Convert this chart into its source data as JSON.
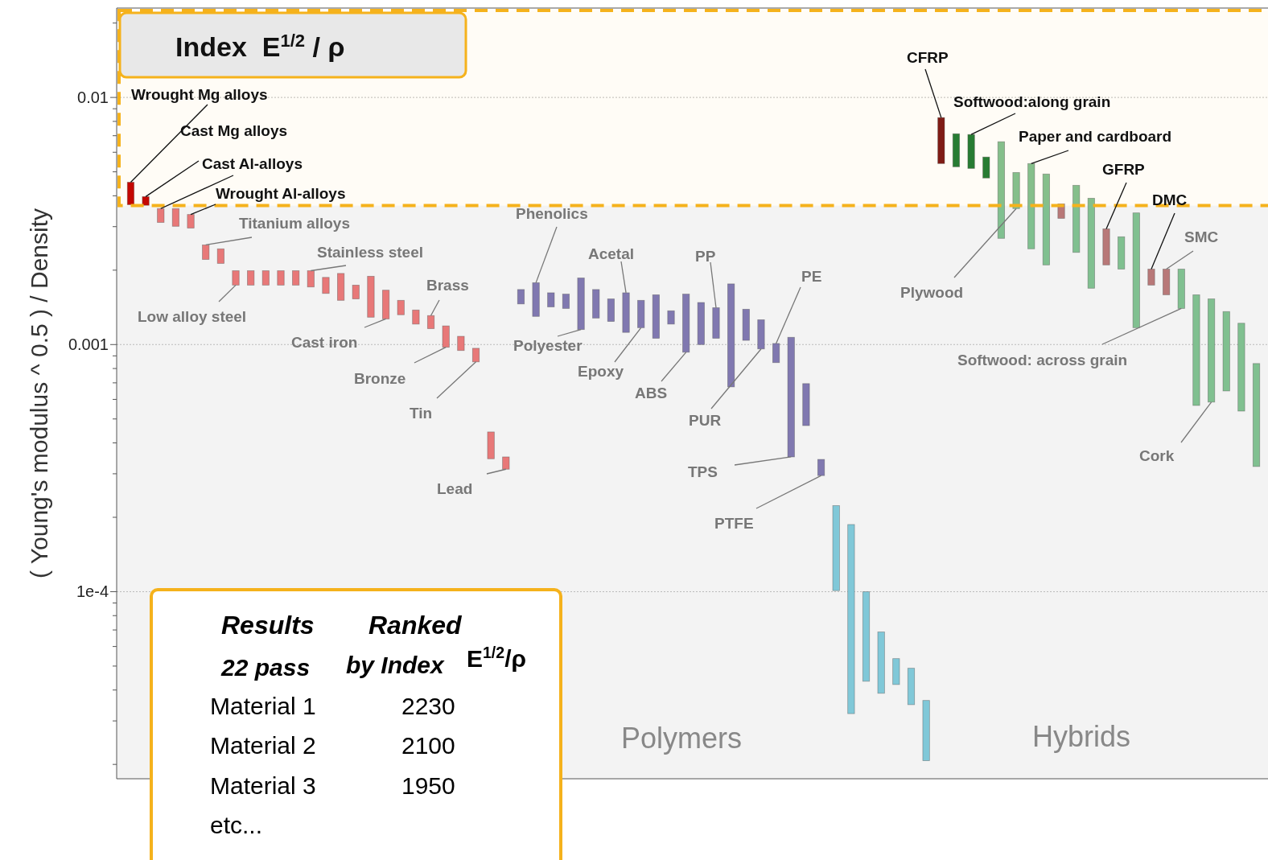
{
  "chart_data": {
    "type": "bar",
    "ylabel": "( Young's modulus ^ 0.5 ) / Density",
    "log": true,
    "grid": "y",
    "ylim": [
      1.75e-05,
      0.023
    ],
    "yticks": [
      {
        "value": 0.02,
        "label": null
      },
      0.01,
      {
        "value": 0.009,
        "label": null
      },
      {
        "value": 0.008,
        "label": null
      },
      {
        "value": 0.007,
        "label": null
      },
      {
        "value": 0.006,
        "label": null
      },
      {
        "value": 0.005,
        "label": null
      },
      {
        "value": 0.004,
        "label": null
      },
      {
        "value": 0.003,
        "label": null
      },
      {
        "value": 0.002,
        "label": null
      },
      0.001,
      {
        "value": 0.0009,
        "label": null
      },
      {
        "value": 0.0008,
        "label": null
      },
      {
        "value": 0.0007,
        "label": null
      },
      {
        "value": 0.0006,
        "label": null
      },
      {
        "value": 0.0005,
        "label": null
      },
      {
        "value": 0.0004,
        "label": null
      },
      {
        "value": 0.0003,
        "label": null
      },
      {
        "value": 0.0002,
        "label": null
      },
      {
        "value": 0.0001,
        "label": "1e-4"
      },
      {
        "value": 9e-05,
        "label": null
      },
      {
        "value": 8e-05,
        "label": null
      },
      {
        "value": 7e-05,
        "label": null
      },
      {
        "value": 6e-05,
        "label": null
      },
      {
        "value": 5e-05,
        "label": null
      },
      {
        "value": 4e-05,
        "label": null
      },
      {
        "value": 3e-05,
        "label": null
      },
      {
        "value": 2e-05,
        "label": null
      }
    ],
    "categories": [
      null,
      null,
      null,
      null,
      null,
      null,
      null,
      null,
      null,
      null,
      null,
      null,
      null,
      null,
      null,
      null,
      null,
      null,
      null,
      null,
      null,
      null,
      null,
      null,
      null,
      null,
      null,
      null,
      null,
      null,
      null,
      null,
      null,
      null,
      null,
      null,
      null,
      null,
      null,
      null,
      null,
      null,
      null,
      null,
      null,
      null,
      null,
      null,
      null,
      null,
      null,
      null,
      null,
      null,
      null,
      null,
      null,
      null,
      null,
      null,
      null,
      null,
      null,
      null,
      null,
      null,
      null,
      null,
      null,
      null,
      null,
      null,
      null,
      null,
      null,
      null
    ],
    "base": [
      0.00368,
      0.00366,
      0.00312,
      0.00301,
      0.00296,
      0.00221,
      0.00213,
      0.00174,
      0.00174,
      0.00174,
      0.00174,
      0.00174,
      0.00171,
      0.00161,
      0.00151,
      0.00153,
      0.00129,
      0.00127,
      0.00132,
      0.00121,
      0.00116,
      0.000975,
      0.000946,
      0.000851,
      0.000345,
      0.000313,
      0.00146,
      0.0013,
      0.00142,
      0.0014,
      0.00115,
      0.00128,
      0.00124,
      0.00112,
      0.00117,
      0.00106,
      0.00121,
      0.000931,
      0.001,
      0.00106,
      0.000674,
      0.00104,
      0.00096,
      0.000845,
      0.000351,
      0.00047,
      0.000295,
      0.000101,
      3.21e-05,
      4.34e-05,
      3.88e-05,
      4.21e-05,
      3.49e-05,
      2.07e-05,
      0.0054,
      0.00524,
      0.00516,
      0.00472,
      0.00269,
      0.00355,
      0.00244,
      0.0021,
      0.00324,
      0.00236,
      0.00169,
      0.0021,
      0.00202,
      0.00117,
      0.00174,
      0.00159,
      0.0014,
      0.000567,
      0.000585,
      0.000649,
      0.000538,
      0.000321
    ],
    "values": [
      0.00086,
      0.00031,
      0.00043,
      0.00054,
      0.0004,
      0.00032,
      0.00031,
      0.00025,
      0.00025,
      0.00025,
      0.00025,
      0.00025,
      0.00028,
      0.00026,
      0.00043,
      0.00021,
      0.0006,
      0.00039,
      0.00019,
      0.00017,
      0.00015,
      0.000215,
      0.000134,
      0.000115,
      9.8e-05,
      3.8e-05,
      0.00021,
      0.00048,
      0.0002,
      0.0002,
      0.00071,
      0.00039,
      0.00029,
      0.0005,
      0.00034,
      0.00053,
      0.00016,
      0.000669,
      0.00048,
      0.00035,
      0.001086,
      0.00035,
      0.0003,
      0.000165,
      0.000719,
      0.000225,
      4.8e-05,
      0.000122,
      0.0001549,
      5.66e-05,
      2.99e-05,
      1.15e-05,
      1.41e-05,
      1.56e-05,
      0.00289,
      0.00189,
      0.00192,
      0.00102,
      0.00393,
      0.00142,
      0.00296,
      0.0028,
      0.00047,
      0.00205,
      0.00222,
      0.00084,
      0.00071,
      0.00224,
      0.00028,
      0.00043,
      0.00062,
      0.001023,
      0.000945,
      0.000711,
      0.000682,
      0.000517
    ],
    "colors": [
      "#c20000",
      "#c20000",
      "#e87878",
      "#e87878",
      "#e87878",
      "#e87878",
      "#e87878",
      "#e87878",
      "#e87878",
      "#e87878",
      "#e87878",
      "#e87878",
      "#e87878",
      "#e87878",
      "#e87878",
      "#e87878",
      "#e87878",
      "#e87878",
      "#e87878",
      "#e87878",
      "#e87878",
      "#e87878",
      "#e87878",
      "#e87878",
      "#e87878",
      "#e87878",
      "#8078b0",
      "#8078b0",
      "#8078b0",
      "#8078b0",
      "#8078b0",
      "#8078b0",
      "#8078b0",
      "#8078b0",
      "#8078b0",
      "#8078b0",
      "#8078b0",
      "#8078b0",
      "#8078b0",
      "#8078b0",
      "#8078b0",
      "#8078b0",
      "#8078b0",
      "#8078b0",
      "#8078b0",
      "#8078b0",
      "#8078b0",
      "#80c8d8",
      "#80c8d8",
      "#80c8d8",
      "#80c8d8",
      "#80c8d8",
      "#80c8d8",
      "#80c8d8",
      "#7a1515",
      "#1f7a35",
      "#1f7a35",
      "#1f7a35",
      "#80c090",
      "#80c090",
      "#80c090",
      "#80c090",
      "#b87878",
      "#80c090",
      "#80c090",
      "#b87878",
      "#80c090",
      "#80c090",
      "#b87878",
      "#b87878",
      "#80c090",
      "#80c090",
      "#80c090",
      "#80c090",
      "#80c090",
      "#80c090"
    ],
    "bands": [
      {
        "axis": "y",
        "from": 0.00365,
        "to": 0.023,
        "label": "Index  E$^{1/2}$ / ρ",
        "color": "#f5b21c"
      }
    ],
    "annotations": [
      "Wrought Mg alloys",
      "Cast Mg alloys",
      "Cast Al-alloys",
      "Wrought Al-alloys",
      "Titanium alloys",
      "Stainless steel",
      "Low alloy steel",
      "Brass",
      "Cast iron",
      "Bronze",
      "Tin",
      "Lead",
      "Phenolics",
      "Acetal",
      "PP",
      "PE",
      "Polyester",
      "Epoxy",
      "ABS",
      "PUR",
      "TPS",
      "PTFE",
      "CFRP",
      "Softwood:along grain",
      "Paper and cardboard",
      "GFRP",
      "DMC",
      "SMC",
      "Plywood",
      "Softwood: across grain",
      "Cork",
      "Polymers",
      "Hybrids",
      "Results",
      "22 pass",
      "Ranked",
      "by Index",
      "E$^{1/2}$/ρ",
      "Material 1",
      "2230",
      "Material 2",
      "2100",
      "Material 3",
      "1950",
      "etc..."
    ]
  }
}
